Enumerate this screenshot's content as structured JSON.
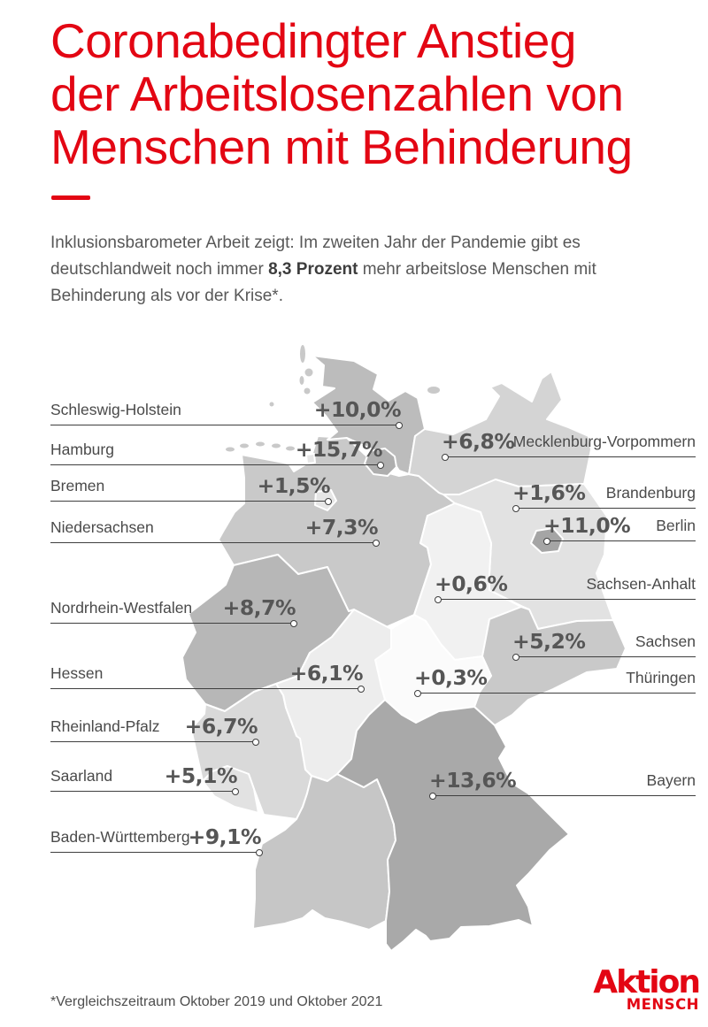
{
  "page": {
    "background": "#ffffff"
  },
  "colors": {
    "brand_red": "#e30613",
    "state_label": "#4a4a4a",
    "value_label": "#565656",
    "leader_line": "#3f3f3f",
    "intro_text": "#575757"
  },
  "title": {
    "line1": "Coronabedingter Anstieg",
    "line2": "der Arbeitslosenzahlen von",
    "line3": "Menschen mit Behinderung"
  },
  "intro": {
    "before": "Inklusionsbarometer Arbeit zeigt: Im zweiten Jahr der Pandemie gibt es deutschlandweit noch immer ",
    "highlight": "8,3 Prozent",
    "after": " mehr arbeitslose Menschen mit Behinderung als vor der Krise*."
  },
  "footnote": "*Vergleichszeitraum Oktober 2019 und Oktober 2021",
  "logo": {
    "top": "Aktion",
    "bottom": "MENSCH"
  },
  "chart_data": {
    "type": "choropleth",
    "title": "Coronabedingter Anstieg der Arbeitslosenzahlen von Menschen mit Behinderung",
    "unit": "Prozent (Anstieg Arbeitslosenzahlen)",
    "national_change_percent": 8.3,
    "comparison_period": "Oktober 2019 und Oktober 2021",
    "states": [
      {
        "id": "schleswig-holstein",
        "name": "Schleswig-Holstein",
        "label": "+10,0%",
        "value": 10.0,
        "color": "#bcbcbc"
      },
      {
        "id": "hamburg",
        "name": "Hamburg",
        "label": "+15,7%",
        "value": 15.7,
        "color": "#aeaeae"
      },
      {
        "id": "bremen",
        "name": "Bremen",
        "label": "+1,5%",
        "value": 1.5,
        "color": "#e6e6e6"
      },
      {
        "id": "niedersachsen",
        "name": "Niedersachsen",
        "label": "+7,3%",
        "value": 7.3,
        "color": "#c9c9c9"
      },
      {
        "id": "nordrhein-westfalen",
        "name": "Nordrhein-Westfalen",
        "label": "+8,7%",
        "value": 8.7,
        "color": "#b7b7b7"
      },
      {
        "id": "hessen",
        "name": "Hessen",
        "label": "+6,1%",
        "value": 6.1,
        "color": "#ededed"
      },
      {
        "id": "rheinland-pfalz",
        "name": "Rheinland-Pfalz",
        "label": "+6,7%",
        "value": 6.7,
        "color": "#d9d9d9"
      },
      {
        "id": "saarland",
        "name": "Saarland",
        "label": "+5,1%",
        "value": 5.1,
        "color": "#e2e2e2"
      },
      {
        "id": "baden-wuerttemberg",
        "name": "Baden-Württemberg",
        "label": "+9,1%",
        "value": 9.1,
        "color": "#c6c6c6"
      },
      {
        "id": "mecklenburg-vorpommern",
        "name": "Mecklenburg-Vorpommern",
        "label": "+6,8%",
        "value": 6.8,
        "color": "#d4d4d4"
      },
      {
        "id": "brandenburg",
        "name": "Brandenburg",
        "label": "+1,6%",
        "value": 1.6,
        "color": "#e2e2e2"
      },
      {
        "id": "berlin",
        "name": "Berlin",
        "label": "+11,0%",
        "value": 11.0,
        "color": "#a5a5a5"
      },
      {
        "id": "sachsen-anhalt",
        "name": "Sachsen-Anhalt",
        "label": "+0,6%",
        "value": 0.6,
        "color": "#f1f1f1"
      },
      {
        "id": "sachsen",
        "name": "Sachsen",
        "label": "+5,2%",
        "value": 5.2,
        "color": "#c9c9c9"
      },
      {
        "id": "thueringen",
        "name": "Thüringen",
        "label": "+0,3%",
        "value": 0.3,
        "color": "#fbfbfb"
      },
      {
        "id": "bayern",
        "name": "Bayern",
        "label": "+13,6%",
        "value": 13.6,
        "color": "#a9a9a9"
      }
    ]
  }
}
